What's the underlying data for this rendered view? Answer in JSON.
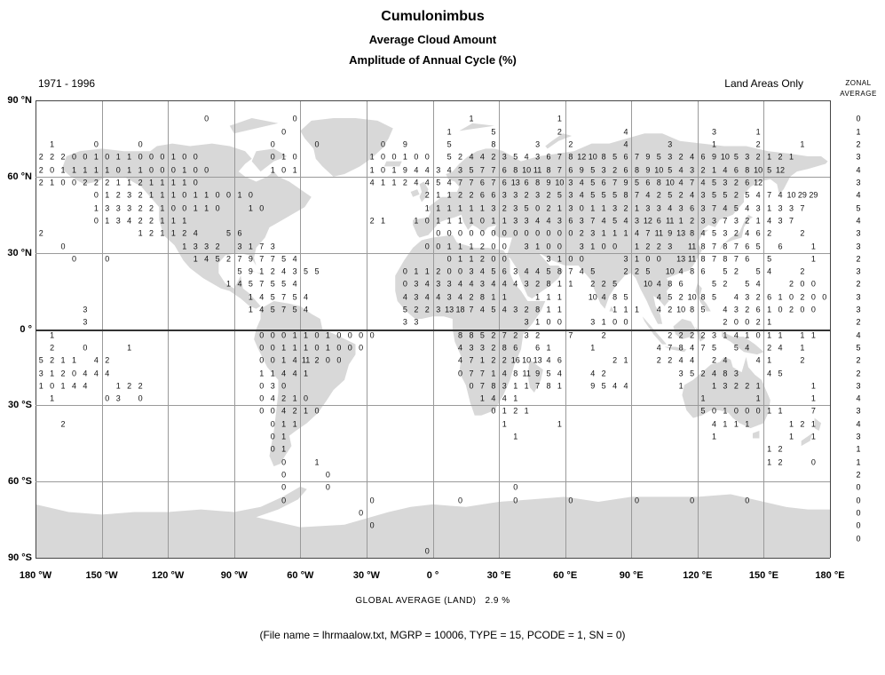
{
  "header": {
    "title": "Cumulonimbus",
    "subtitle1": "Average Cloud Amount",
    "subtitle2": "Amplitude of Annual Cycle (%)",
    "period": "1971 - 1996",
    "scope": "Land Areas Only",
    "zonal_line1": "ZONAL",
    "zonal_line2": "AVERAGE"
  },
  "footer": {
    "global_average_label": "GLOBAL AVERAGE (LAND)",
    "global_average_value": "2.9 %",
    "file_info": "(File name = lhrmaalow.txt, MGRP = 10006, TYPE = 15, PCODE = 1, SN = 0)"
  },
  "colors": {
    "land": "#d8d8d8",
    "grid_line": "#9a9a9a",
    "frame_line": "#444444",
    "text": "#000000",
    "background": "#ffffff"
  },
  "chart_data": {
    "type": "heatmap",
    "title": "Cumulonimbus",
    "subtitle": "Average Cloud Amount - Amplitude of Annual Cycle (%)",
    "period": "1971 - 1996",
    "coverage": "Land Areas Only",
    "units": "%",
    "global_average_percent": 2.9,
    "projection": "equirectangular",
    "x_axis": {
      "ticks": [
        "180 °W",
        "150 °W",
        "120 °W",
        "90 °W",
        "60 °W",
        "30 °W",
        "0 °",
        "30 °E",
        "60 °E",
        "90 °E",
        "120 °E",
        "150 °E",
        "180 °E"
      ],
      "range_deg": [
        -180,
        180
      ],
      "grid_step_deg": 30
    },
    "y_axis": {
      "ticks": [
        "90 °N",
        "60 °N",
        "30 °N",
        "0 °",
        "30 °S",
        "60 °S",
        "90 °S"
      ],
      "range_deg": [
        90,
        -90
      ],
      "grid_step_deg": 30
    },
    "zonal_average_label": "ZONAL AVERAGE",
    "zonal_averages": [
      "",
      "0",
      "1",
      "2",
      "3",
      "4",
      "3",
      "4",
      "5",
      "4",
      "3",
      "3",
      "2",
      "3",
      "2",
      "3",
      "3",
      "2",
      "4",
      "5",
      "2",
      "2",
      "3",
      "4",
      "3",
      "4",
      "3",
      "1",
      "1",
      "2",
      "0",
      "0",
      "0",
      "0",
      "0",
      ""
    ],
    "grid": {
      "cols": 72,
      "lon_start_deg": -177.5,
      "lat_start_deg": 87.5,
      "cell_deg": 5,
      "note": "Each run places space-separated values at consecutive 5-degree longitude columns starting at column c (land cells only).",
      "rows": [
        {
          "lat": 82.5,
          "runs": [
            [
              15,
              "0"
            ],
            [
              23,
              "0"
            ],
            [
              39,
              "1"
            ],
            [
              47,
              "1"
            ]
          ]
        },
        {
          "lat": 77.5,
          "runs": [
            [
              22,
              "0"
            ],
            [
              37,
              "1"
            ],
            [
              41,
              "5"
            ],
            [
              47,
              "2"
            ],
            [
              53,
              "4"
            ],
            [
              61,
              "3"
            ],
            [
              65,
              "1"
            ]
          ]
        },
        {
          "lat": 72.5,
          "runs": [
            [
              1,
              "1"
            ],
            [
              5,
              "0"
            ],
            [
              9,
              "0"
            ],
            [
              21,
              "0"
            ],
            [
              25,
              "0"
            ],
            [
              31,
              "0"
            ],
            [
              33,
              "9"
            ],
            [
              37,
              "5"
            ],
            [
              41,
              "8"
            ],
            [
              45,
              "3"
            ],
            [
              48,
              "2"
            ],
            [
              53,
              "4"
            ],
            [
              57,
              "3"
            ],
            [
              61,
              "1"
            ],
            [
              65,
              "2"
            ],
            [
              69,
              "1"
            ]
          ]
        },
        {
          "lat": 67.5,
          "runs": [
            [
              0,
              "2 2 2 0 0 1 0 1 1 0 0 0 1 0 0"
            ],
            [
              21,
              "0 1 0"
            ],
            [
              30,
              "1 0 0 1 0 0"
            ],
            [
              37,
              "5 2 4 4 2 3 5 4 3 6 7 8 12 10 8 5 6 7 9 5 3 2 4 6 9 10 5 3 2 1 2 1"
            ]
          ]
        },
        {
          "lat": 62.5,
          "runs": [
            [
              0,
              "2 0 1 1 1 1 1 0 1 1 0 0 0 1 0 0"
            ],
            [
              21,
              "1 0 1"
            ],
            [
              30,
              "1 0 1 9 4 4 3 4 3 5 7 7 6 8 10 11 8 7 6 9 5 3 2 6 8 9 10 5 4 3 2 1 4 6 8 10 5 12"
            ]
          ]
        },
        {
          "lat": 57.5,
          "runs": [
            [
              0,
              "2 1 0 0 2 2 2 1 1 2 1 1 1 1 0"
            ],
            [
              30,
              "4 1 1 2 4 4 5 4 7 7 6 7 6 13 6 8 9 10 3 4 5 6 7 9 5 6 8 10 4 7 4 5 3 2 6 12"
            ]
          ]
        },
        {
          "lat": 52.5,
          "runs": [
            [
              5,
              "0 1 2 3 2 1 1 1 0 1 1 0 0 1 0"
            ],
            [
              35,
              "2 1 1 2 2 6 6 3 3 2 3 2 5 3 4 5 5 5 8 7 4 2 5 2 4 3 5 5 2 5 4 7 4 10 29 29"
            ]
          ]
        },
        {
          "lat": 47.5,
          "runs": [
            [
              5,
              "1 3 3 3 2 2 1 0 0 1 1 0"
            ],
            [
              19,
              "1 0"
            ],
            [
              35,
              "1 1 1 1 1 1 3 2 3 5 0 2 1 3 0 1 1 3 2 1 3 3 4 3 6 3 7 4 5 4 3 1 3 3 7"
            ]
          ]
        },
        {
          "lat": 42.5,
          "runs": [
            [
              5,
              "0 1 3 4 2 2 1 1 1"
            ],
            [
              30,
              "2 1"
            ],
            [
              34,
              "1 0 1 1 1 1 0 1 1 3 3 4 4 3 6 3 7 4 5 4 3 12 6 11 1 2 3 3 7 3 2 1 4 3 7"
            ]
          ]
        },
        {
          "lat": 37.5,
          "runs": [
            [
              0,
              "2"
            ],
            [
              9,
              "1 2 1 1 2 4"
            ],
            [
              17,
              "5 6"
            ],
            [
              36,
              "0 0 0 0 0 0 0 0 0 0 0 0 0 2 3 1 1 1 4 7 11 9 13 8 4 5 3 2 4 6 2"
            ],
            [
              69,
              "2"
            ]
          ]
        },
        {
          "lat": 32.5,
          "runs": [
            [
              2,
              "0"
            ],
            [
              13,
              "1 3 3 2"
            ],
            [
              18,
              "3 1 7 3"
            ],
            [
              35,
              "0 0 1 1 1 2 0 0"
            ],
            [
              44,
              "3 1 0 0"
            ],
            [
              49,
              "3 1 0 0"
            ],
            [
              54,
              "1 2 2 3"
            ],
            [
              59,
              "11 8 7 8 7 6 5"
            ],
            [
              67,
              "6"
            ],
            [
              70,
              "1"
            ]
          ]
        },
        {
          "lat": 27.5,
          "runs": [
            [
              3,
              "0"
            ],
            [
              6,
              "0"
            ],
            [
              14,
              "1 4 5 2 7 9 7 7 5 4"
            ],
            [
              37,
              "0 1 1 2 0 0"
            ],
            [
              46,
              "3 1 0 0"
            ],
            [
              53,
              "3 1 0 0"
            ],
            [
              58,
              "13 11 8 7 8 7 6"
            ],
            [
              66,
              "5"
            ],
            [
              70,
              "1"
            ]
          ]
        },
        {
          "lat": 22.5,
          "runs": [
            [
              18,
              "5 9 1 2 4 3 5 5"
            ],
            [
              33,
              "0 1 1 2 0 0 3 4 5 6 3 4 4 5 8 7 4 5"
            ],
            [
              53,
              "2 2 5"
            ],
            [
              57,
              "10 4 8 6"
            ],
            [
              62,
              "5 2"
            ],
            [
              65,
              "5 4"
            ],
            [
              69,
              "2"
            ]
          ]
        },
        {
          "lat": 17.5,
          "runs": [
            [
              17,
              "1 4 5 7 5 5 4"
            ],
            [
              33,
              "0 3 4 3 3 4 4 3 4 4 4 3 2 8 1 1"
            ],
            [
              50,
              "2 2 5"
            ],
            [
              55,
              "10 4 8 6"
            ],
            [
              61,
              "5 2"
            ],
            [
              64,
              "5 4"
            ],
            [
              68,
              "2 0 0"
            ]
          ]
        },
        {
          "lat": 12.5,
          "runs": [
            [
              19,
              "1 4 5 7 5 4"
            ],
            [
              33,
              "4 3 4 4 3 4 2 8 1 1"
            ],
            [
              45,
              "1 1 1"
            ],
            [
              50,
              "10 4 8 5"
            ],
            [
              56,
              "4 5 2 10 8 5"
            ],
            [
              63,
              "4 3 2 6 1 0 2 0 0"
            ]
          ]
        },
        {
          "lat": 7.5,
          "runs": [
            [
              4,
              "3"
            ],
            [
              19,
              "1 4 5 7 5 4"
            ],
            [
              33,
              "5 2 2 3 13 18 7 4 5 4 3 2 8 1 1"
            ],
            [
              52,
              "1 1 1"
            ],
            [
              56,
              "4 2 10 8 5"
            ],
            [
              62,
              "4 3 2 6 1 0 2 0 0"
            ]
          ]
        },
        {
          "lat": 2.5,
          "runs": [
            [
              4,
              "3"
            ],
            [
              33,
              "3 3"
            ],
            [
              44,
              "3 1 0 0"
            ],
            [
              50,
              "3 1 0 0"
            ],
            [
              62,
              "2 0 0 2 1"
            ]
          ]
        },
        {
          "lat": -2.5,
          "runs": [
            [
              1,
              "1"
            ],
            [
              20,
              "0 0 0 1 1 0 1 0 0 0 0"
            ],
            [
              38,
              "8 8 5 2 7 2 3 2"
            ],
            [
              48,
              "7"
            ],
            [
              51,
              "2"
            ],
            [
              57,
              "2 2 2 2 3 1 4 1 0 1 1"
            ],
            [
              69,
              "1 1"
            ]
          ]
        },
        {
          "lat": -7.5,
          "runs": [
            [
              1,
              "2"
            ],
            [
              4,
              "0"
            ],
            [
              8,
              "1"
            ],
            [
              20,
              "0 0 1 1 1 0 1 0 0 0"
            ],
            [
              38,
              "4 3 3 2 8 6"
            ],
            [
              45,
              "6 1"
            ],
            [
              50,
              "1"
            ],
            [
              56,
              "4 7 8 4 7 5"
            ],
            [
              63,
              "5 4"
            ],
            [
              66,
              "2 4"
            ],
            [
              69,
              "1"
            ]
          ]
        },
        {
          "lat": -12.5,
          "runs": [
            [
              0,
              "5 2 1 1"
            ],
            [
              5,
              "4 2"
            ],
            [
              20,
              "0 0 1 4 11 2 0 0"
            ],
            [
              38,
              "4 7 1 2 2 16 10 13 4 6"
            ],
            [
              52,
              "2 1"
            ],
            [
              56,
              "2 2 4 4"
            ],
            [
              61,
              "2 4"
            ],
            [
              65,
              "4 1"
            ],
            [
              69,
              "2"
            ]
          ]
        },
        {
          "lat": -17.5,
          "runs": [
            [
              0,
              "3 1 2 0 4 4 4"
            ],
            [
              20,
              "1 1 4 4 1"
            ],
            [
              38,
              "0 7 7 1 4 8 11 9 5 4"
            ],
            [
              50,
              "4 2"
            ],
            [
              58,
              "3 5 2 4 8 3"
            ],
            [
              66,
              "4 5"
            ]
          ]
        },
        {
          "lat": -22.5,
          "runs": [
            [
              0,
              "1 0 1 4 4"
            ],
            [
              7,
              "1 2 2"
            ],
            [
              20,
              "0 3 0"
            ],
            [
              39,
              "0 7 8 3 1 1 7 8 1"
            ],
            [
              50,
              "9 5 4 4"
            ],
            [
              58,
              "1"
            ],
            [
              61,
              "1 3 2 2 1"
            ],
            [
              70,
              "1"
            ]
          ]
        },
        {
          "lat": -27.5,
          "runs": [
            [
              1,
              "1"
            ],
            [
              6,
              "0 3"
            ],
            [
              9,
              "0"
            ],
            [
              20,
              "0 4 2 1 0"
            ],
            [
              40,
              "1 4 4 1"
            ],
            [
              60,
              "1"
            ],
            [
              65,
              "1"
            ],
            [
              70,
              "1"
            ]
          ]
        },
        {
          "lat": -32.5,
          "runs": [
            [
              20,
              "0 0 4 2 1 0"
            ],
            [
              41,
              "0 1 2 1"
            ],
            [
              60,
              "5 0 1 0 0 0 1 1"
            ],
            [
              70,
              "7"
            ]
          ]
        },
        {
          "lat": -37.5,
          "runs": [
            [
              2,
              "2"
            ],
            [
              21,
              "0 1 1"
            ],
            [
              42,
              "1"
            ],
            [
              47,
              "1"
            ],
            [
              61,
              "4 1 1 1"
            ],
            [
              68,
              "1 2 1"
            ]
          ]
        },
        {
          "lat": -42.5,
          "runs": [
            [
              21,
              "0 1"
            ],
            [
              43,
              "1"
            ],
            [
              61,
              "1"
            ],
            [
              68,
              "1"
            ],
            [
              70,
              "1"
            ]
          ]
        },
        {
          "lat": -47.5,
          "runs": [
            [
              21,
              "0 1"
            ],
            [
              66,
              "1 2"
            ]
          ]
        },
        {
          "lat": -52.5,
          "runs": [
            [
              22,
              "0"
            ],
            [
              25,
              "1"
            ],
            [
              66,
              "1 2"
            ],
            [
              70,
              "0"
            ]
          ]
        },
        {
          "lat": -57.5,
          "runs": [
            [
              22,
              "0"
            ],
            [
              26,
              "0"
            ]
          ]
        },
        {
          "lat": -62.5,
          "runs": [
            [
              22,
              "0"
            ],
            [
              26,
              "0"
            ],
            [
              43,
              "0"
            ]
          ]
        },
        {
          "lat": -67.5,
          "runs": [
            [
              22,
              "0"
            ],
            [
              30,
              "0"
            ],
            [
              38,
              "0"
            ],
            [
              43,
              "0"
            ],
            [
              48,
              "0"
            ],
            [
              54,
              "0"
            ],
            [
              59,
              "0"
            ],
            [
              64,
              "0"
            ]
          ]
        },
        {
          "lat": -72.5,
          "runs": [
            [
              29,
              "0"
            ]
          ]
        },
        {
          "lat": -77.5,
          "runs": [
            [
              30,
              "0"
            ]
          ]
        },
        {
          "lat": -87.5,
          "runs": [
            [
              35,
              "0"
            ]
          ]
        }
      ]
    }
  }
}
